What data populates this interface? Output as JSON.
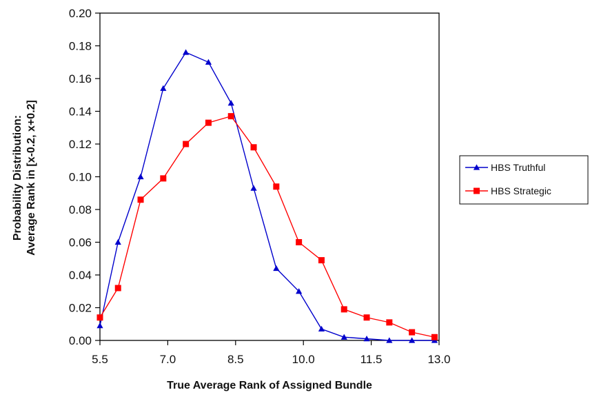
{
  "chart_data": {
    "type": "line",
    "title": "",
    "xlabel": "True Average Rank of Assigned Bundle",
    "ylabel_lines": [
      "Probability Distribution:",
      "Average Rank in [x-0.2, x+0.2]"
    ],
    "xlim": [
      5.5,
      13.0
    ],
    "ylim": [
      0.0,
      0.2
    ],
    "x_tick_values": [
      5.5,
      7.0,
      8.5,
      10.0,
      11.5,
      13.0
    ],
    "x_tick_labels": [
      "5.5",
      "7.0",
      "8.5",
      "10.0",
      "11.5",
      "13.0"
    ],
    "y_tick_values": [
      0.0,
      0.02,
      0.04,
      0.06,
      0.08,
      0.1,
      0.12,
      0.14,
      0.16,
      0.18,
      0.2
    ],
    "y_tick_labels": [
      "0.00",
      "0.02",
      "0.04",
      "0.06",
      "0.08",
      "0.10",
      "0.12",
      "0.14",
      "0.16",
      "0.18",
      "0.20"
    ],
    "grid": false,
    "legend_position": "right",
    "x": [
      5.5,
      5.9,
      6.3,
      6.7,
      7.1,
      7.5,
      7.9,
      8.3,
      8.7,
      9.1,
      9.5,
      9.9,
      10.3,
      10.7,
      11.1,
      11.5,
      11.9,
      12.3
    ],
    "series": [
      {
        "name": "HBS Truthful",
        "color": "#0000cc",
        "marker": "triangle",
        "x": [
          5.5,
          5.9,
          6.4,
          6.9,
          7.4,
          7.9,
          8.4,
          8.9,
          9.4,
          9.9,
          10.4,
          10.9,
          11.4,
          11.9,
          12.4,
          12.9
        ],
        "values": [
          0.009,
          0.06,
          0.1,
          0.154,
          0.176,
          0.17,
          0.145,
          0.093,
          0.044,
          0.03,
          0.007,
          0.002,
          0.001,
          0.0,
          0.0,
          0.0
        ]
      },
      {
        "name": "HBS Strategic",
        "color": "#ff0000",
        "marker": "square",
        "x": [
          5.5,
          5.9,
          6.4,
          6.9,
          7.4,
          7.9,
          8.4,
          8.9,
          9.4,
          9.9,
          10.4,
          10.9,
          11.4,
          11.9,
          12.4,
          12.9
        ],
        "values": [
          0.014,
          0.032,
          0.086,
          0.099,
          0.12,
          0.133,
          0.137,
          0.118,
          0.094,
          0.06,
          0.049,
          0.019,
          0.014,
          0.011,
          0.005,
          0.002
        ]
      }
    ]
  }
}
